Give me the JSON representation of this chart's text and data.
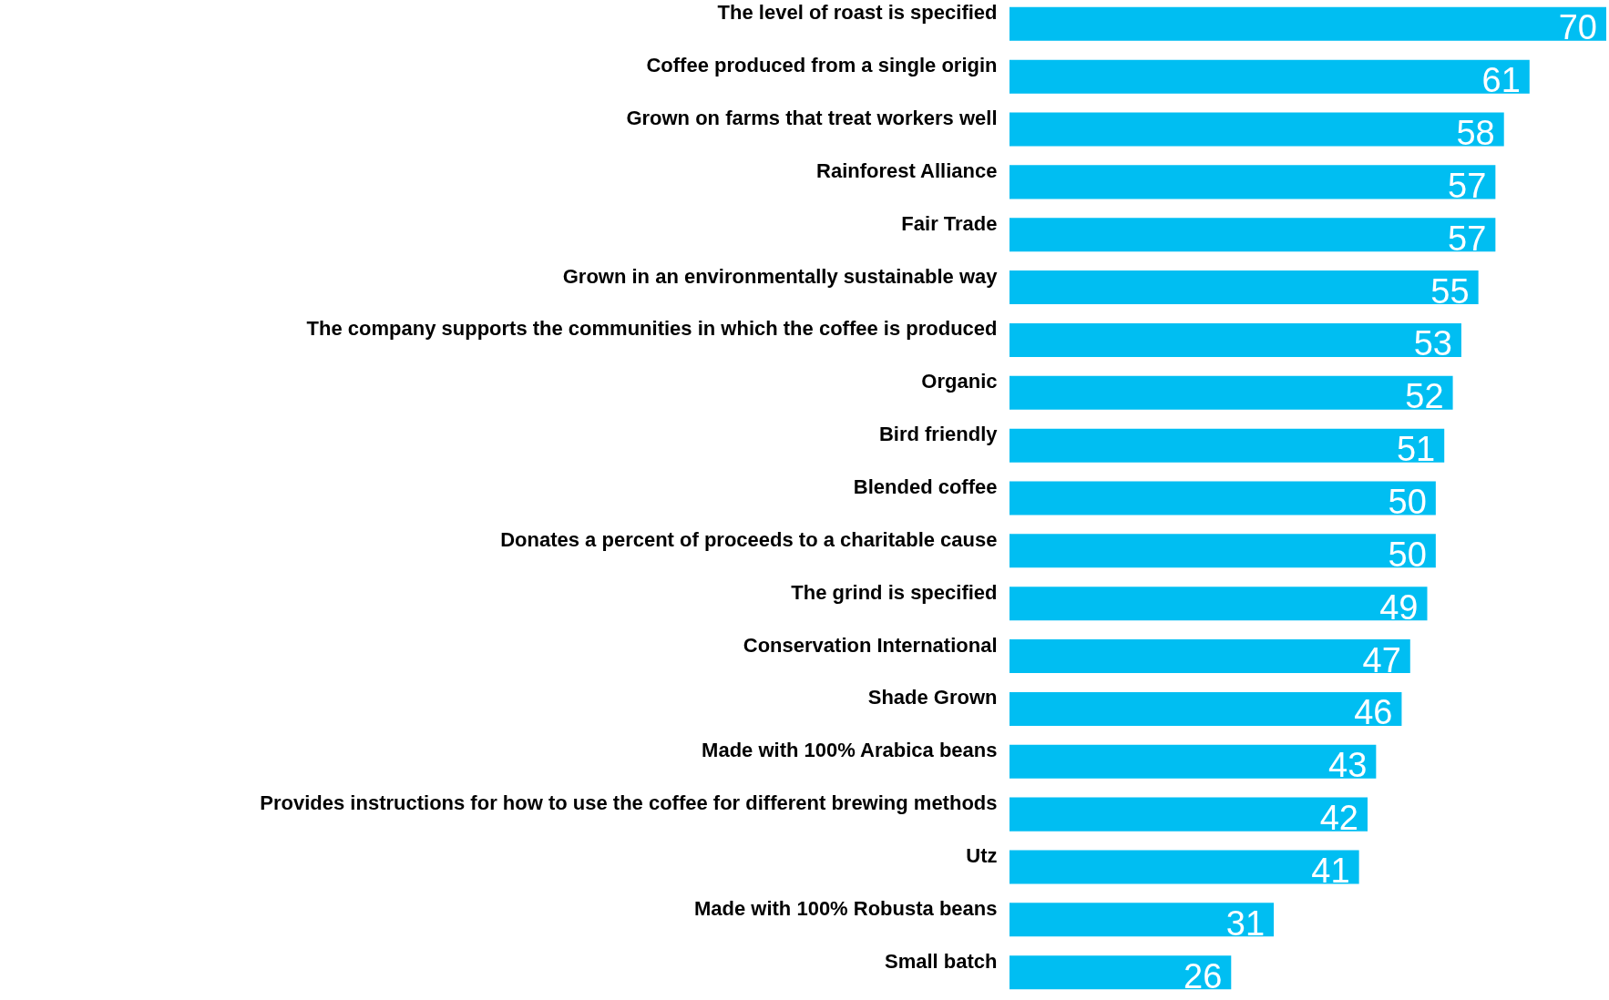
{
  "chart_data": {
    "type": "bar",
    "orientation": "horizontal",
    "data_labels": true,
    "color": "#00bef2",
    "categories": [
      "The level of roast is specified",
      "Coffee produced from a single origin",
      "Grown on farms that treat workers well",
      "Rainforest Alliance",
      "Fair Trade",
      "Grown in an environmentally sustainable way",
      "The company supports the communities in which the coffee is produced",
      "Organic",
      "Bird friendly",
      "Blended coffee",
      "Donates a percent of proceeds to a charitable cause",
      "The grind is specified",
      "Conservation International",
      "Shade Grown",
      "Made with 100% Arabica beans",
      "Provides instructions for how to use the coffee for different brewing methods",
      "Utz",
      "Made with 100% Robusta beans",
      "Small batch"
    ],
    "values": [
      70,
      61,
      58,
      57,
      57,
      55,
      53,
      52,
      51,
      50,
      50,
      49,
      47,
      46,
      43,
      42,
      41,
      31,
      26
    ]
  }
}
